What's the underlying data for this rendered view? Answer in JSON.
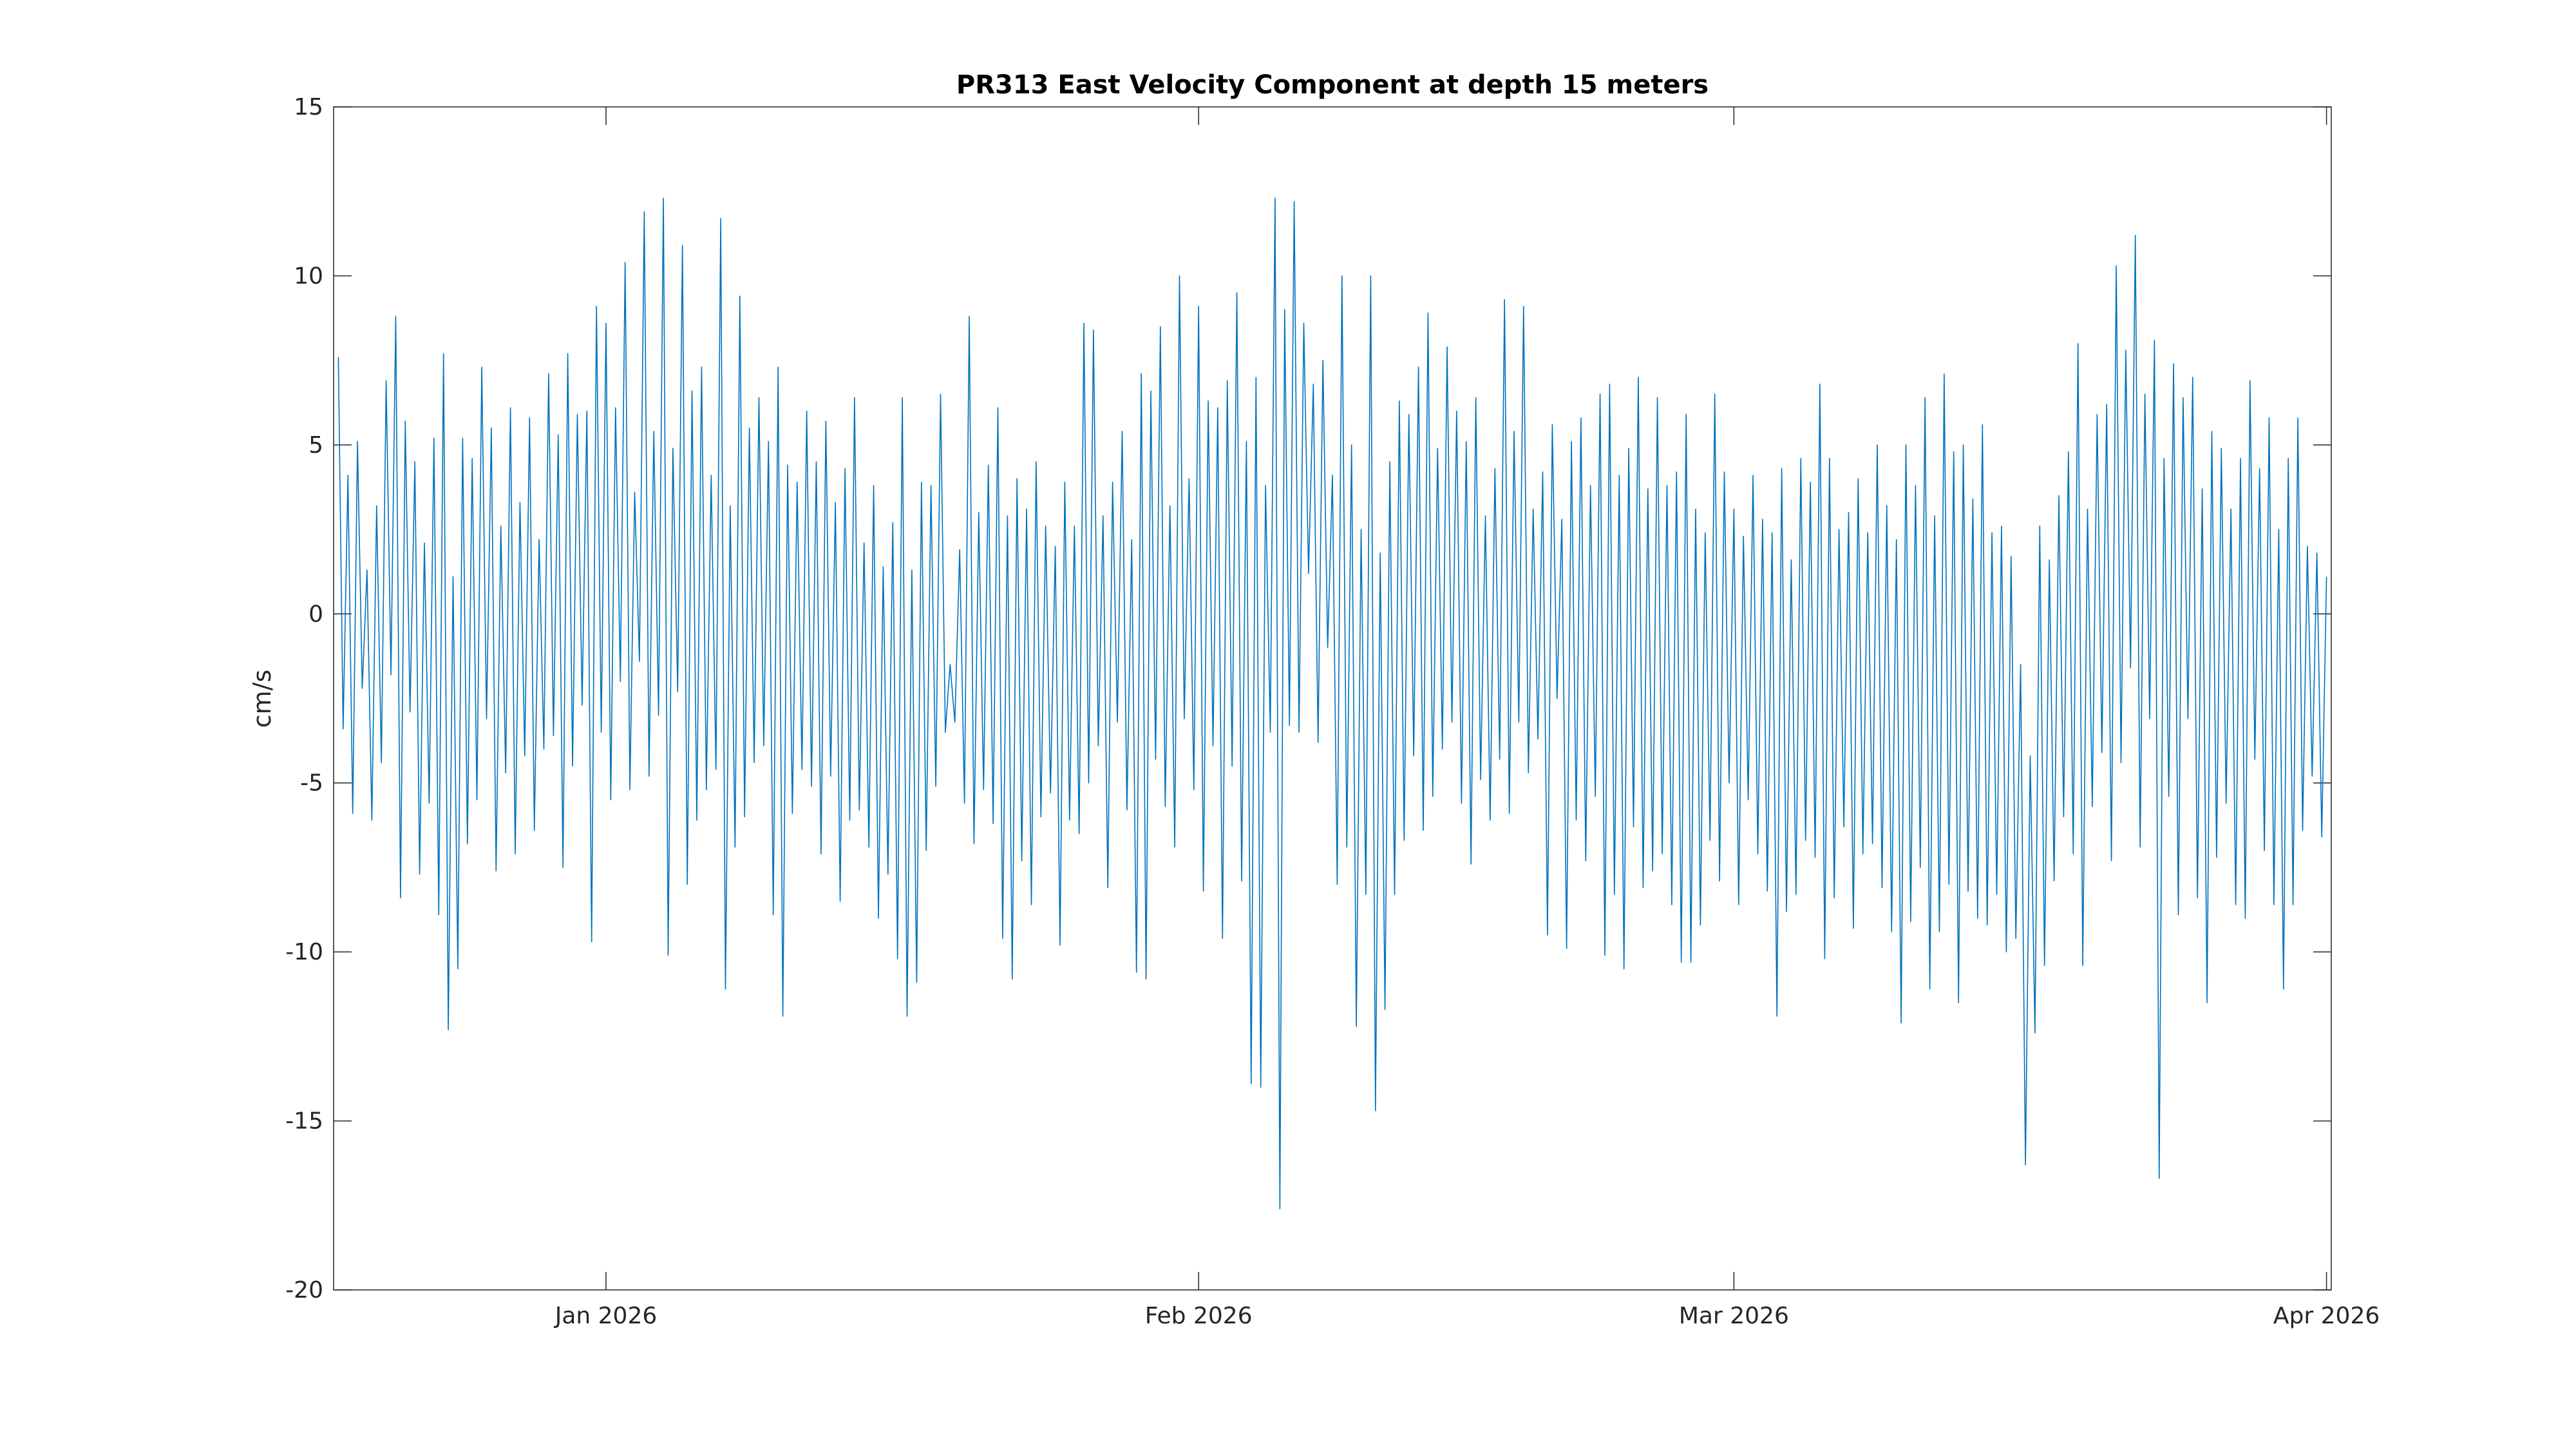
{
  "chart_data": {
    "type": "line",
    "title": "PR313 East Velocity Component at depth 15 meters",
    "xlabel": "",
    "ylabel": "cm/s",
    "ylim": [
      -20,
      15
    ],
    "yticks": [
      -20,
      -15,
      -10,
      -5,
      0,
      5,
      10,
      15
    ],
    "ytick_labels": [
      "-20",
      "-15",
      "-10",
      "-5",
      "0",
      "5",
      "10",
      "15"
    ],
    "xlim": [
      "2025-12-17T18:00",
      "2026-04-01T06:00"
    ],
    "xticks": [
      "2026-01-01",
      "2026-02-01",
      "2026-03-01",
      "2026-04-01"
    ],
    "xtick_labels": [
      "Jan 2026",
      "Feb 2026",
      "Mar 2026",
      "Apr 2026"
    ],
    "grid": false,
    "line_color": "#0072BD",
    "time": {
      "start": "2025-12-18T00:00",
      "interval_hours": 6
    },
    "values": [
      7.6,
      -3.4,
      4.1,
      -5.9,
      5.1,
      -2.2,
      1.3,
      -6.1,
      3.2,
      -4.4,
      6.9,
      -1.8,
      8.8,
      -8.4,
      5.7,
      -2.9,
      4.5,
      -7.7,
      2.1,
      -5.6,
      5.2,
      -8.9,
      7.7,
      -12.3,
      1.1,
      -10.5,
      5.2,
      -6.8,
      4.6,
      -5.5,
      7.3,
      -3.1,
      5.5,
      -7.6,
      2.6,
      -4.7,
      6.1,
      -7.1,
      3.3,
      -4.2,
      5.8,
      -6.4,
      2.2,
      -4.0,
      7.1,
      -3.6,
      5.3,
      -7.5,
      7.7,
      -4.5,
      5.9,
      -2.7,
      6.0,
      -9.7,
      9.1,
      -3.5,
      8.6,
      -5.5,
      6.1,
      -2.0,
      10.4,
      -5.2,
      3.6,
      -1.4,
      11.9,
      -4.8,
      5.4,
      -3.0,
      12.3,
      -10.1,
      4.9,
      -2.3,
      10.9,
      -8.0,
      6.6,
      -6.1,
      7.3,
      -5.2,
      4.1,
      -4.6,
      11.7,
      -11.1,
      3.2,
      -6.9,
      9.4,
      -6.0,
      5.5,
      -4.4,
      6.4,
      -3.9,
      5.1,
      -8.9,
      7.3,
      -11.9,
      4.4,
      -5.9,
      3.9,
      -4.6,
      6.0,
      -5.1,
      4.5,
      -7.1,
      5.7,
      -4.8,
      3.3,
      -8.5,
      4.3,
      -6.1,
      6.4,
      -5.8,
      2.1,
      -6.9,
      3.8,
      -9.0,
      1.4,
      -7.7,
      2.7,
      -10.2,
      6.4,
      -11.9,
      1.3,
      -10.9,
      3.9,
      -7.0,
      3.8,
      -5.1,
      6.5,
      -3.5,
      -1.5,
      -3.2,
      1.9,
      -5.6,
      8.8,
      -6.8,
      3.0,
      -5.2,
      4.4,
      -6.2,
      6.1,
      -9.6,
      2.9,
      -10.8,
      4.0,
      -7.3,
      3.1,
      -8.6,
      4.5,
      -6.0,
      2.6,
      -5.3,
      2.0,
      -9.8,
      3.9,
      -6.1,
      2.6,
      -6.5,
      8.6,
      -5.0,
      8.4,
      -3.9,
      2.9,
      -8.1,
      3.9,
      -3.2,
      5.4,
      -5.8,
      2.2,
      -10.6,
      7.1,
      -10.8,
      6.6,
      -4.3,
      8.5,
      -5.7,
      3.2,
      -6.9,
      10.0,
      -3.1,
      4.0,
      -5.2,
      9.1,
      -8.2,
      6.3,
      -3.9,
      6.1,
      -9.6,
      6.9,
      -4.5,
      9.5,
      -7.9,
      5.1,
      -13.9,
      7.0,
      -14.0,
      3.8,
      -3.5,
      12.3,
      -17.6,
      9.0,
      -3.3,
      12.2,
      -3.5,
      8.6,
      1.2,
      6.8,
      -3.8,
      7.5,
      -1.0,
      4.1,
      -8.0,
      10.0,
      -6.9,
      5.0,
      -12.2,
      2.5,
      -8.3,
      10.0,
      -14.7,
      1.8,
      -11.7,
      4.5,
      -8.3,
      6.3,
      -6.7,
      5.9,
      -4.2,
      7.3,
      -6.4,
      8.9,
      -5.4,
      4.9,
      -4.0,
      7.9,
      -3.2,
      6.0,
      -5.6,
      5.1,
      -7.4,
      6.4,
      -4.9,
      2.9,
      -6.1,
      4.3,
      -4.3,
      9.3,
      -5.9,
      5.4,
      -3.2,
      9.1,
      -4.7,
      3.1,
      -3.7,
      4.2,
      -9.5,
      5.6,
      -2.5,
      2.8,
      -9.9,
      5.1,
      -6.1,
      5.8,
      -7.3,
      3.8,
      -5.4,
      6.5,
      -10.1,
      6.8,
      -8.3,
      4.1,
      -10.5,
      4.9,
      -6.3,
      7.0,
      -8.1,
      3.7,
      -7.6,
      6.4,
      -7.1,
      3.8,
      -8.6,
      4.2,
      -10.3,
      5.9,
      -10.3,
      3.1,
      -9.2,
      2.4,
      -6.7,
      6.5,
      -7.9,
      4.2,
      -5.0,
      3.1,
      -8.6,
      2.3,
      -5.5,
      4.1,
      -7.1,
      2.8,
      -8.2,
      2.4,
      -11.9,
      4.3,
      -8.8,
      1.6,
      -8.3,
      4.6,
      -6.7,
      3.9,
      -7.2,
      6.8,
      -10.2,
      4.6,
      -8.4,
      2.5,
      -6.3,
      3.0,
      -9.3,
      4.0,
      -7.1,
      2.4,
      -6.8,
      5.0,
      -8.1,
      3.2,
      -9.4,
      2.2,
      -12.1,
      5.0,
      -9.1,
      3.8,
      -7.5,
      6.4,
      -11.1,
      2.9,
      -9.4,
      7.1,
      -8.0,
      4.8,
      -11.5,
      5.0,
      -8.2,
      3.4,
      -9.0,
      5.6,
      -9.2,
      2.4,
      -8.3,
      2.6,
      -10.0,
      1.7,
      -9.6,
      -1.5,
      -16.3,
      -4.2,
      -12.4,
      2.6,
      -10.4,
      1.6,
      -7.9,
      3.5,
      -6.0,
      4.8,
      -7.1,
      8.0,
      -10.4,
      3.1,
      -5.7,
      5.9,
      -4.1,
      6.2,
      -7.3,
      10.3,
      -4.4,
      7.8,
      -1.6,
      11.2,
      -6.9,
      6.5,
      -3.1,
      8.1,
      -16.7,
      4.6,
      -5.4,
      7.4,
      -8.9,
      6.4,
      -3.1,
      7.0,
      -8.4,
      3.7,
      -11.5,
      5.4,
      -7.2,
      4.9,
      -5.6,
      3.1,
      -8.6,
      4.6,
      -9.0,
      6.9,
      -4.3,
      4.3,
      -7.0,
      5.8,
      -8.6,
      2.5,
      -11.1,
      4.6,
      -8.6,
      5.8,
      -6.4,
      2.0,
      -4.8,
      1.8,
      -6.6,
      1.1
    ]
  }
}
